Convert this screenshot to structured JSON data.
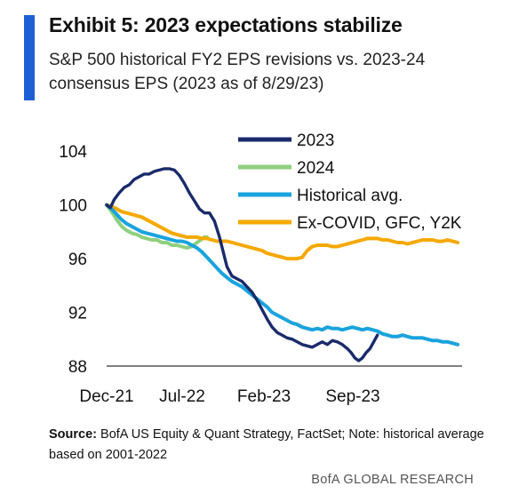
{
  "header": {
    "title": "Exhibit 5: 2023 expectations stabilize",
    "subtitle": "S&P 500 historical FY2 EPS revisions vs. 2023-24 consensus EPS (2023 as of 8/29/23)",
    "accent_color": "#1f5fd6"
  },
  "chart_data": {
    "type": "line",
    "title": "",
    "xlabel": "",
    "ylabel": "",
    "x_ticks": [
      "Dec-21",
      "Jul-22",
      "Feb-23",
      "Sep-23"
    ],
    "x_range_months": [
      0,
      28
    ],
    "ylim": [
      88,
      106
    ],
    "y_ticks": [
      88,
      92,
      96,
      100,
      104
    ],
    "grid": false,
    "legend_position": "top-right",
    "series": [
      {
        "name": "2023",
        "color": "#1a2b6b",
        "points": [
          [
            0,
            100
          ],
          [
            0.3,
            99.8
          ],
          [
            0.6,
            100.4
          ],
          [
            1,
            100.9
          ],
          [
            1.4,
            101.3
          ],
          [
            1.8,
            101.5
          ],
          [
            2.2,
            101.9
          ],
          [
            2.6,
            102.1
          ],
          [
            3,
            102.3
          ],
          [
            3.4,
            102.3
          ],
          [
            3.8,
            102.5
          ],
          [
            4.2,
            102.6
          ],
          [
            4.6,
            102.7
          ],
          [
            5,
            102.7
          ],
          [
            5.4,
            102.6
          ],
          [
            5.8,
            102.2
          ],
          [
            6.2,
            101.6
          ],
          [
            6.6,
            100.9
          ],
          [
            7,
            100.3
          ],
          [
            7.4,
            99.7
          ],
          [
            7.8,
            99.4
          ],
          [
            8.2,
            99.4
          ],
          [
            8.6,
            98.8
          ],
          [
            9,
            97.6
          ],
          [
            9.3,
            96.5
          ],
          [
            9.6,
            95.4
          ],
          [
            10,
            94.7
          ],
          [
            10.4,
            94.5
          ],
          [
            10.8,
            94.3
          ],
          [
            11.2,
            93.9
          ],
          [
            11.6,
            93.5
          ],
          [
            12,
            92.9
          ],
          [
            12.4,
            92.2
          ],
          [
            12.8,
            91.5
          ],
          [
            13.2,
            90.9
          ],
          [
            13.6,
            90.5
          ],
          [
            14,
            90.3
          ],
          [
            14.4,
            90.1
          ],
          [
            14.8,
            90.0
          ],
          [
            15.2,
            89.8
          ],
          [
            15.6,
            89.6
          ],
          [
            16,
            89.5
          ],
          [
            16.4,
            89.4
          ],
          [
            16.8,
            89.6
          ],
          [
            17.2,
            89.8
          ],
          [
            17.6,
            89.6
          ],
          [
            18,
            89.9
          ],
          [
            18.4,
            89.8
          ],
          [
            18.8,
            89.6
          ],
          [
            19.2,
            89.3
          ],
          [
            19.5,
            89.0
          ],
          [
            19.8,
            88.6
          ],
          [
            20.1,
            88.4
          ],
          [
            20.4,
            88.6
          ],
          [
            20.7,
            89.0
          ],
          [
            21,
            89.3
          ],
          [
            21.3,
            89.8
          ],
          [
            21.6,
            90.3
          ]
        ]
      },
      {
        "name": "2024",
        "color": "#8fd07e",
        "points": [
          [
            0,
            100
          ],
          [
            0.4,
            99.5
          ],
          [
            0.8,
            98.9
          ],
          [
            1.2,
            98.4
          ],
          [
            1.6,
            98.1
          ],
          [
            2,
            97.9
          ],
          [
            2.4,
            97.8
          ],
          [
            2.8,
            97.6
          ],
          [
            3.2,
            97.5
          ],
          [
            3.6,
            97.4
          ],
          [
            4,
            97.4
          ],
          [
            4.4,
            97.2
          ],
          [
            4.8,
            97.2
          ],
          [
            5.2,
            97.0
          ],
          [
            5.6,
            97.0
          ],
          [
            6,
            96.9
          ],
          [
            6.4,
            96.8
          ],
          [
            6.8,
            96.9
          ],
          [
            7.2,
            97.2
          ],
          [
            7.5,
            97.4
          ],
          [
            7.8,
            97.6
          ],
          [
            8,
            97.6
          ]
        ]
      },
      {
        "name": "Historical avg.",
        "color": "#1aa3dd",
        "points": [
          [
            0,
            100
          ],
          [
            0.4,
            99.7
          ],
          [
            0.8,
            99.3
          ],
          [
            1.2,
            98.9
          ],
          [
            1.6,
            98.6
          ],
          [
            2,
            98.4
          ],
          [
            2.4,
            98.2
          ],
          [
            2.8,
            98.0
          ],
          [
            3.2,
            97.9
          ],
          [
            3.6,
            97.8
          ],
          [
            4,
            97.7
          ],
          [
            4.4,
            97.6
          ],
          [
            4.8,
            97.5
          ],
          [
            5.2,
            97.4
          ],
          [
            5.6,
            97.3
          ],
          [
            6,
            97.3
          ],
          [
            6.4,
            97.2
          ],
          [
            6.8,
            97.0
          ],
          [
            7.2,
            96.8
          ],
          [
            7.6,
            96.5
          ],
          [
            8,
            96.1
          ],
          [
            8.4,
            95.7
          ],
          [
            8.8,
            95.3
          ],
          [
            9.2,
            94.9
          ],
          [
            9.6,
            94.6
          ],
          [
            10,
            94.3
          ],
          [
            10.4,
            94.1
          ],
          [
            10.8,
            93.9
          ],
          [
            11.2,
            93.6
          ],
          [
            11.6,
            93.3
          ],
          [
            12,
            93.0
          ],
          [
            12.4,
            92.7
          ],
          [
            12.8,
            92.4
          ],
          [
            13.2,
            92.0
          ],
          [
            13.6,
            91.8
          ],
          [
            14,
            91.6
          ],
          [
            14.4,
            91.4
          ],
          [
            14.8,
            91.2
          ],
          [
            15.2,
            91.1
          ],
          [
            15.6,
            90.9
          ],
          [
            16,
            90.8
          ],
          [
            16.4,
            90.7
          ],
          [
            16.8,
            90.8
          ],
          [
            17.2,
            90.7
          ],
          [
            17.6,
            90.9
          ],
          [
            18,
            90.8
          ],
          [
            18.4,
            90.8
          ],
          [
            18.8,
            90.7
          ],
          [
            19.2,
            90.8
          ],
          [
            19.6,
            90.9
          ],
          [
            20,
            90.8
          ],
          [
            20.4,
            90.7
          ],
          [
            20.8,
            90.8
          ],
          [
            21.2,
            90.7
          ],
          [
            21.6,
            90.6
          ],
          [
            22,
            90.4
          ],
          [
            22.4,
            90.3
          ],
          [
            22.8,
            90.2
          ],
          [
            23.2,
            90.2
          ],
          [
            23.6,
            90.3
          ],
          [
            24,
            90.2
          ],
          [
            24.4,
            90.1
          ],
          [
            24.8,
            90.1
          ],
          [
            25.2,
            90.1
          ],
          [
            25.6,
            90.0
          ],
          [
            26,
            89.9
          ],
          [
            26.4,
            89.9
          ],
          [
            26.8,
            89.8
          ],
          [
            27.2,
            89.8
          ],
          [
            27.6,
            89.7
          ],
          [
            28,
            89.6
          ]
        ]
      },
      {
        "name": "Ex-COVID, GFC, Y2K",
        "color": "#f5a800",
        "points": [
          [
            0,
            100
          ],
          [
            0.4,
            99.9
          ],
          [
            0.8,
            99.7
          ],
          [
            1.2,
            99.5
          ],
          [
            1.6,
            99.4
          ],
          [
            2,
            99.3
          ],
          [
            2.4,
            99.2
          ],
          [
            2.8,
            99.1
          ],
          [
            3.2,
            98.9
          ],
          [
            3.6,
            98.7
          ],
          [
            4,
            98.5
          ],
          [
            4.4,
            98.3
          ],
          [
            4.8,
            98.1
          ],
          [
            5.2,
            97.9
          ],
          [
            5.6,
            97.8
          ],
          [
            6,
            97.7
          ],
          [
            6.4,
            97.6
          ],
          [
            6.8,
            97.6
          ],
          [
            7.2,
            97.6
          ],
          [
            7.6,
            97.5
          ],
          [
            8,
            97.5
          ],
          [
            8.4,
            97.4
          ],
          [
            8.8,
            97.3
          ],
          [
            9.2,
            97.3
          ],
          [
            9.6,
            97.3
          ],
          [
            10,
            97.2
          ],
          [
            10.4,
            97.1
          ],
          [
            10.8,
            97.0
          ],
          [
            11.2,
            96.9
          ],
          [
            11.6,
            96.8
          ],
          [
            12,
            96.7
          ],
          [
            12.4,
            96.6
          ],
          [
            12.8,
            96.4
          ],
          [
            13.2,
            96.3
          ],
          [
            13.6,
            96.2
          ],
          [
            14,
            96.1
          ],
          [
            14.4,
            96.0
          ],
          [
            14.8,
            96.0
          ],
          [
            15.2,
            96.0
          ],
          [
            15.6,
            96.1
          ],
          [
            16,
            96.6
          ],
          [
            16.4,
            96.9
          ],
          [
            16.8,
            97.0
          ],
          [
            17.2,
            97.0
          ],
          [
            17.6,
            97.0
          ],
          [
            18,
            96.9
          ],
          [
            18.4,
            96.9
          ],
          [
            18.8,
            97.0
          ],
          [
            19.2,
            97.1
          ],
          [
            19.6,
            97.2
          ],
          [
            20,
            97.3
          ],
          [
            20.4,
            97.4
          ],
          [
            20.8,
            97.5
          ],
          [
            21.2,
            97.5
          ],
          [
            21.6,
            97.5
          ],
          [
            22,
            97.4
          ],
          [
            22.4,
            97.4
          ],
          [
            22.8,
            97.3
          ],
          [
            23.2,
            97.2
          ],
          [
            23.6,
            97.2
          ],
          [
            24,
            97.1
          ],
          [
            24.4,
            97.2
          ],
          [
            24.8,
            97.3
          ],
          [
            25.2,
            97.4
          ],
          [
            25.6,
            97.4
          ],
          [
            26,
            97.4
          ],
          [
            26.4,
            97.3
          ],
          [
            26.8,
            97.3
          ],
          [
            27.2,
            97.4
          ],
          [
            27.6,
            97.3
          ],
          [
            28,
            97.2
          ]
        ]
      }
    ]
  },
  "footer": {
    "source_label": "Source:",
    "source_text": " BofA US Equity & Quant Strategy, FactSet; Note: historical average based on 2001-2022",
    "brand": "BofA GLOBAL RESEARCH"
  }
}
